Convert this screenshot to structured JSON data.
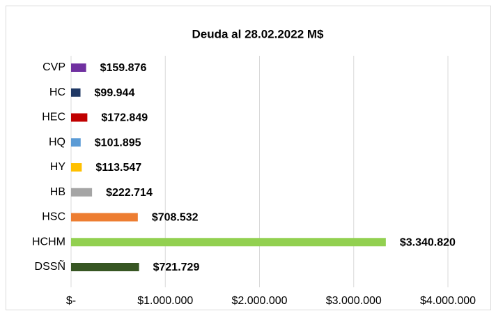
{
  "chart_data": {
    "type": "bar",
    "orientation": "horizontal",
    "title": "Deuda al 28.02.2022 M$",
    "categories": [
      "CVP",
      "HC",
      "HEC",
      "HQ",
      "HY",
      "HB",
      "HSC",
      "HCHM",
      "DSSÑ"
    ],
    "values": [
      159876,
      99944,
      172849,
      101895,
      113547,
      222714,
      708532,
      3340820,
      721729
    ],
    "value_labels": [
      "$159.876",
      "$99.944",
      "$172.849",
      "$101.895",
      "$113.547",
      "$222.714",
      "$708.532",
      "$3.340.820",
      "$721.729"
    ],
    "colors": [
      "#7030a0",
      "#1f3864",
      "#c00000",
      "#5b9bd5",
      "#ffc000",
      "#a5a5a5",
      "#ed7d31",
      "#92d050",
      "#375623"
    ],
    "xlim": [
      0,
      4000000
    ],
    "xticks": [
      {
        "value": 0,
        "label": "$-"
      },
      {
        "value": 1000000,
        "label": "$1.000.000"
      },
      {
        "value": 2000000,
        "label": "$2.000.000"
      },
      {
        "value": 3000000,
        "label": "$3.000.000"
      },
      {
        "value": 4000000,
        "label": "$4.000.000"
      }
    ],
    "grid": true
  }
}
